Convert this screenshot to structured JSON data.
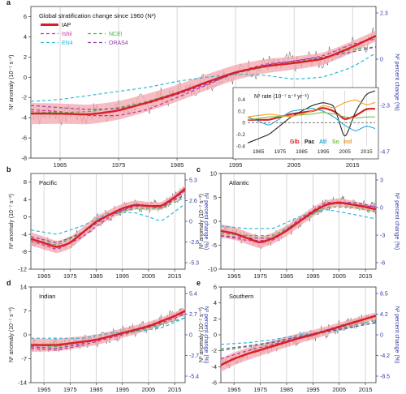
{
  "figure": {
    "colors": {
      "IAP": "#d81f26",
      "IAP_band": "#f4a6ac",
      "Ishii": "#cc2a9e",
      "NCEI": "#43b649",
      "EN4": "#29b8d6",
      "ORAS4": "#8a3fa8",
      "raw": "#555555",
      "grid": "#bbbbbb",
      "right_axis": "#2f3aa8"
    }
  },
  "chart_data": [
    {
      "panel_letter": "a",
      "type": "line",
      "title": "Global stratification change since 1960 (N²)",
      "ylabel": "N² anomaly (10⁻⁷ s⁻²)",
      "ylabel_right": "N² percent change (%)",
      "xlim": [
        1960,
        2019
      ],
      "ylim": [
        -8,
        7
      ],
      "xticks": [
        "1965",
        "1975",
        "1985",
        "1995",
        "2005",
        "2015"
      ],
      "yticks": [
        "-8",
        "-6",
        "-4",
        "-2",
        "0",
        "2",
        "4",
        "6"
      ],
      "yticks_right": [
        "2.3",
        "0",
        "-2.3",
        "-4.7"
      ],
      "legend": [
        "IAP",
        "NCEI",
        "Ishii",
        "EN4",
        "ORAS4"
      ],
      "series": [
        {
          "name": "IAP",
          "x": [
            1960,
            1965,
            1970,
            1975,
            1980,
            1985,
            1990,
            1995,
            2000,
            2005,
            2010,
            2015,
            2019
          ],
          "values": [
            -3.6,
            -3.6,
            -3.7,
            -3.3,
            -2.5,
            -1.6,
            -0.5,
            0.5,
            1.1,
            1.4,
            1.8,
            3.0,
            4.1
          ]
        },
        {
          "name": "Ishii",
          "x": [
            1960,
            1965,
            1970,
            1975,
            1980,
            1985,
            1990,
            1995,
            2000,
            2005,
            2010,
            2015,
            2019
          ],
          "values": [
            -3.2,
            -3.4,
            -3.8,
            -3.8,
            -3.2,
            -2.0,
            -0.8,
            0.5,
            1.3,
            1.6,
            2.1,
            3.3,
            3.8
          ]
        },
        {
          "name": "NCEI",
          "x": [
            1960,
            1965,
            1970,
            1975,
            1980,
            1985,
            1990,
            1995,
            2000,
            2005,
            2010,
            2015,
            2019
          ],
          "values": [
            -3.4,
            -3.5,
            -3.4,
            -3.0,
            -2.4,
            -1.5,
            -0.6,
            0.4,
            1.0,
            1.5,
            1.9,
            2.8,
            3.0
          ]
        },
        {
          "name": "EN4",
          "x": [
            1960,
            1965,
            1970,
            1975,
            1980,
            1985,
            1990,
            1995,
            2000,
            2005,
            2010,
            2015,
            2019
          ],
          "values": [
            -2.4,
            -2.2,
            -1.8,
            -1.4,
            -1.0,
            -0.4,
            0.0,
            0.3,
            0.2,
            -0.2,
            0.0,
            1.0,
            2.4
          ]
        },
        {
          "name": "ORAS4",
          "x": [
            1960,
            1965,
            1970,
            1975,
            1980,
            1985,
            1990,
            1995,
            2000,
            2005,
            2010,
            2015,
            2019
          ],
          "values": [
            -2.8,
            -3.0,
            -3.2,
            -3.1,
            -2.6,
            -1.7,
            -0.7,
            0.4,
            1.2,
            1.6,
            2.0,
            2.5,
            3.0
          ]
        }
      ],
      "inset": {
        "title": "N² rate (10⁻⁷ s⁻² yr⁻¹)",
        "xlim": [
          1960,
          2019
        ],
        "ylim": [
          -0.4,
          0.55
        ],
        "xticks": [
          "1965",
          "1975",
          "1985",
          "1995",
          "2005",
          "2015"
        ],
        "yticks": [
          "0.4",
          "0.2",
          "0",
          "-0.2",
          "-0.4"
        ],
        "labels": [
          "Glb",
          "Pac",
          "Atl",
          "So",
          "Ind"
        ],
        "series": [
          {
            "name": "Glb",
            "x": [
              1960,
              1970,
              1980,
              1990,
              1995,
              2000,
              2005,
              2010,
              2015,
              2019
            ],
            "values": [
              0.05,
              0.05,
              0.15,
              0.2,
              0.26,
              0.2,
              0.05,
              0.12,
              0.24,
              0.24
            ]
          },
          {
            "name": "Pac",
            "x": [
              1960,
              1970,
              1980,
              1990,
              1995,
              2000,
              2005,
              2010,
              2015,
              2019
            ],
            "values": [
              -0.35,
              -0.2,
              0.1,
              0.3,
              0.35,
              0.3,
              -0.3,
              0.2,
              0.5,
              0.55
            ]
          },
          {
            "name": "Atl",
            "x": [
              1960,
              1970,
              1980,
              1990,
              1995,
              2000,
              2005,
              2010,
              2015,
              2019
            ],
            "values": [
              0.1,
              -0.05,
              0.2,
              0.25,
              0.2,
              0.1,
              -0.05,
              -0.15,
              -0.05,
              -0.1
            ]
          },
          {
            "name": "So",
            "x": [
              1960,
              1970,
              1980,
              1990,
              1995,
              2000,
              2005,
              2010,
              2015,
              2019
            ],
            "values": [
              0.05,
              0.1,
              0.12,
              0.15,
              0.18,
              0.15,
              0.1,
              0.08,
              0.1,
              0.1
            ]
          },
          {
            "name": "Ind",
            "x": [
              1960,
              1970,
              1980,
              1990,
              1995,
              2000,
              2005,
              2010,
              2015,
              2019
            ],
            "values": [
              0.1,
              0.15,
              0.1,
              0.2,
              0.3,
              0.25,
              0.35,
              0.4,
              0.3,
              0.35
            ]
          },
          {
            "name": "",
            "x": [
              1960,
              2019
            ],
            "values": [
              0.0,
              0.0
            ]
          }
        ]
      }
    },
    {
      "panel_letter": "b",
      "type": "line",
      "title": "Pacific",
      "ylabel": "N² anomaly (10⁻⁷ s⁻²)",
      "ylabel_right": "N² percent change (%)",
      "xlim": [
        1960,
        2019
      ],
      "ylim": [
        -12,
        10
      ],
      "xticks": [
        "1965",
        "1975",
        "1985",
        "1995",
        "2005",
        "2015"
      ],
      "yticks": [
        "-12",
        "-8",
        "-4",
        "0",
        "4",
        "8"
      ],
      "yticks_right": [
        "5.3",
        "2.6",
        "0",
        "-2.6",
        "-5.3"
      ],
      "series": [
        {
          "name": "IAP",
          "x": [
            1960,
            1965,
            1970,
            1975,
            1980,
            1985,
            1990,
            1995,
            2000,
            2005,
            2010,
            2015,
            2019
          ],
          "values": [
            -5.0,
            -6.0,
            -7.0,
            -6.0,
            -3.5,
            -1.0,
            0.5,
            2.0,
            2.8,
            2.5,
            2.5,
            4.5,
            6.5
          ]
        },
        {
          "name": "Ishii",
          "x": [
            1960,
            1970,
            1980,
            1990,
            2000,
            2010,
            2019
          ],
          "values": [
            -5.5,
            -7.5,
            -4.5,
            0.0,
            3.0,
            2.0,
            6.0
          ]
        },
        {
          "name": "NCEI",
          "x": [
            1960,
            1970,
            1980,
            1990,
            2000,
            2010,
            2019
          ],
          "values": [
            -5.0,
            -6.5,
            -3.5,
            0.5,
            2.0,
            2.0,
            4.5
          ]
        },
        {
          "name": "EN4",
          "x": [
            1960,
            1970,
            1980,
            1990,
            2000,
            2010,
            2019
          ],
          "values": [
            -3.0,
            -4.0,
            -2.0,
            1.0,
            1.0,
            -1.0,
            3.0
          ]
        },
        {
          "name": "ORAS4",
          "x": [
            1960,
            1970,
            1980,
            1990,
            2000,
            2010,
            2019
          ],
          "values": [
            -4.5,
            -6.0,
            -3.5,
            0.5,
            2.5,
            2.5,
            5.0
          ]
        }
      ]
    },
    {
      "panel_letter": "c",
      "type": "line",
      "title": "Atlantic",
      "ylabel": "N² anomaly (10⁻⁷ s⁻²)",
      "ylabel_right": "N² percent change (%)",
      "xlim": [
        1960,
        2019
      ],
      "ylim": [
        -10,
        10
      ],
      "xticks": [
        "1965",
        "1975",
        "1985",
        "1995",
        "2005",
        "2015"
      ],
      "yticks": [
        "-10",
        "-5",
        "0",
        "5",
        "10"
      ],
      "yticks_right": [
        "3",
        "0",
        "-3",
        "-6"
      ],
      "series": [
        {
          "name": "IAP",
          "x": [
            1960,
            1965,
            1970,
            1975,
            1980,
            1985,
            1990,
            1995,
            2000,
            2005,
            2010,
            2015,
            2019
          ],
          "values": [
            -2.0,
            -2.5,
            -3.5,
            -4.5,
            -3.5,
            -2.0,
            0.0,
            2.0,
            3.5,
            4.0,
            3.5,
            3.0,
            2.5
          ]
        },
        {
          "name": "Ishii",
          "x": [
            1960,
            1970,
            1980,
            1990,
            2000,
            2010,
            2019
          ],
          "values": [
            -3.0,
            -4.0,
            -4.0,
            0.5,
            4.0,
            3.5,
            3.0
          ]
        },
        {
          "name": "NCEI",
          "x": [
            1960,
            1970,
            1980,
            1990,
            2000,
            2010,
            2019
          ],
          "values": [
            -2.5,
            -3.0,
            -3.0,
            0.0,
            3.0,
            3.0,
            2.0
          ]
        },
        {
          "name": "EN4",
          "x": [
            1960,
            1970,
            1980,
            1990,
            2000,
            2010,
            2019
          ],
          "values": [
            -1.0,
            -1.5,
            -1.5,
            1.0,
            2.5,
            1.5,
            0.5
          ]
        },
        {
          "name": "ORAS4",
          "x": [
            1960,
            1970,
            1980,
            1990,
            2000,
            2010,
            2019
          ],
          "values": [
            -3.0,
            -3.5,
            -3.5,
            0.0,
            3.5,
            4.0,
            3.0
          ]
        }
      ]
    },
    {
      "panel_letter": "d",
      "type": "line",
      "title": "Indian",
      "ylabel": "N² anomaly (10⁻⁷ s⁻²)",
      "ylabel_right": "N² percent change (%)",
      "xlim": [
        1960,
        2019
      ],
      "ylim": [
        -14,
        14
      ],
      "xticks": [
        "1965",
        "1975",
        "1985",
        "1995",
        "2005",
        "2015"
      ],
      "yticks": [
        "-14",
        "-7",
        "0",
        "7",
        "14"
      ],
      "yticks_right": [
        "5.4",
        "2.7",
        "0",
        "-2.7",
        "-5.4"
      ],
      "series": [
        {
          "name": "IAP",
          "x": [
            1960,
            1965,
            1970,
            1975,
            1980,
            1985,
            1990,
            1995,
            2000,
            2005,
            2010,
            2015,
            2019
          ],
          "values": [
            -3.0,
            -3.0,
            -3.0,
            -2.5,
            -2.0,
            -1.5,
            -0.5,
            0.5,
            1.5,
            2.5,
            4.0,
            5.5,
            7.0
          ]
        },
        {
          "name": "Ishii",
          "x": [
            1960,
            1970,
            1980,
            1990,
            2000,
            2010,
            2019
          ],
          "values": [
            -4.0,
            -4.5,
            -3.0,
            -1.0,
            1.0,
            3.5,
            6.0
          ]
        },
        {
          "name": "NCEI",
          "x": [
            1960,
            1970,
            1980,
            1990,
            2000,
            2010,
            2019
          ],
          "values": [
            -3.0,
            -3.5,
            -2.0,
            -0.5,
            1.0,
            3.0,
            5.0
          ]
        },
        {
          "name": "EN4",
          "x": [
            1960,
            1970,
            1980,
            1990,
            2000,
            2010,
            2019
          ],
          "values": [
            -1.0,
            -1.0,
            -1.0,
            0.5,
            1.0,
            2.0,
            5.0
          ]
        },
        {
          "name": "ORAS4",
          "x": [
            1960,
            1970,
            1980,
            1990,
            2000,
            2010,
            2019
          ],
          "values": [
            -3.5,
            -4.0,
            -2.5,
            -0.5,
            1.5,
            4.0,
            6.5
          ]
        }
      ]
    },
    {
      "panel_letter": "e",
      "type": "line",
      "title": "Southern",
      "ylabel": "N² anomaly (10⁻⁷ s⁻²)",
      "ylabel_right": "N² percent change (%)",
      "xlim": [
        1960,
        2019
      ],
      "ylim": [
        -6,
        6
      ],
      "xticks": [
        "1965",
        "1975",
        "1985",
        "1995",
        "2005",
        "2015"
      ],
      "yticks": [
        "-6",
        "-4",
        "-2",
        "0",
        "2",
        "4",
        "6"
      ],
      "yticks_right": [
        "8.5",
        "4.2",
        "0",
        "-4.2",
        "-8.5"
      ],
      "series": [
        {
          "name": "IAP",
          "x": [
            1960,
            1965,
            1970,
            1975,
            1980,
            1985,
            1990,
            1995,
            2000,
            2005,
            2010,
            2015,
            2019
          ],
          "values": [
            -3.8,
            -3.0,
            -2.4,
            -1.9,
            -1.4,
            -0.9,
            -0.4,
            0.0,
            0.5,
            1.0,
            1.5,
            2.0,
            2.4
          ]
        },
        {
          "name": "Ishii",
          "x": [
            1960,
            1970,
            1980,
            1990,
            2000,
            2010,
            2019
          ],
          "values": [
            -3.0,
            -2.0,
            -1.2,
            -0.3,
            0.6,
            1.6,
            2.3
          ]
        },
        {
          "name": "NCEI",
          "x": [
            1960,
            1970,
            1980,
            1990,
            2000,
            2010,
            2019
          ],
          "values": [
            -2.0,
            -1.5,
            -1.0,
            -0.2,
            0.5,
            1.2,
            1.8
          ]
        },
        {
          "name": "EN4",
          "x": [
            1960,
            1970,
            1980,
            1990,
            2000,
            2010,
            2019
          ],
          "values": [
            -1.2,
            -1.0,
            -0.6,
            0.0,
            0.3,
            0.9,
            1.6
          ]
        },
        {
          "name": "ORAS4",
          "x": [
            1960,
            1970,
            1980,
            1990,
            2000,
            2010,
            2019
          ],
          "values": [
            -1.8,
            -1.4,
            -0.9,
            -0.2,
            0.4,
            1.0,
            1.5
          ]
        }
      ]
    }
  ]
}
